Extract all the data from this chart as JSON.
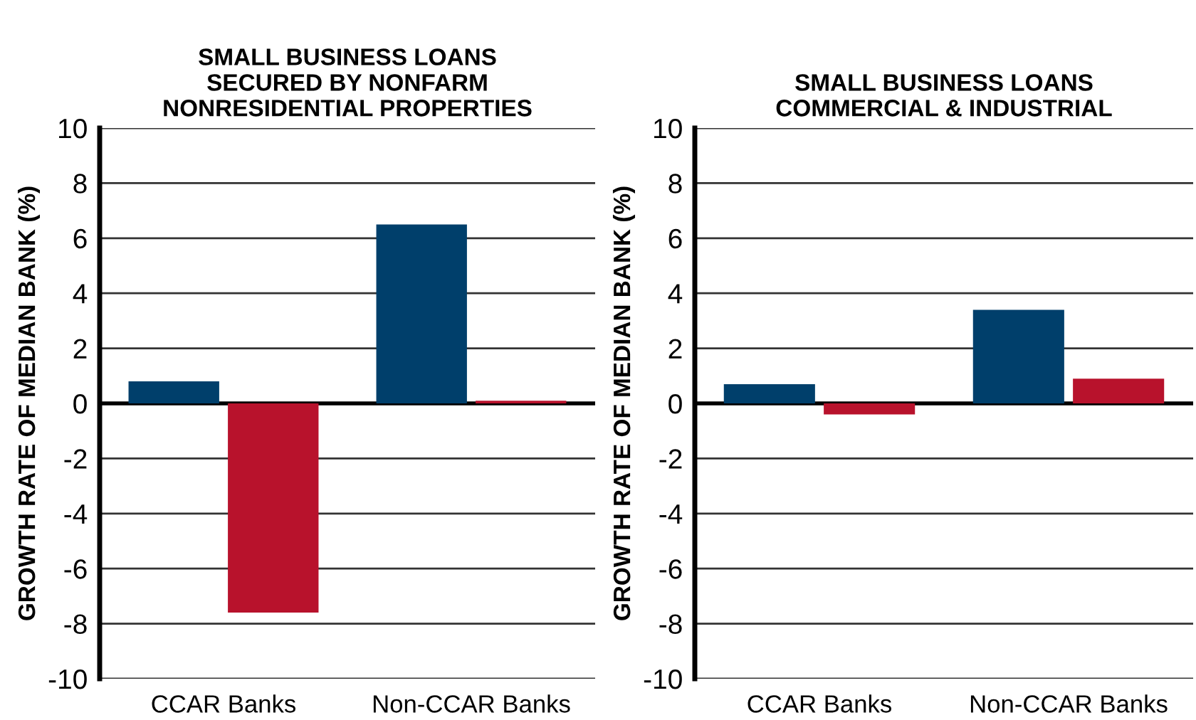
{
  "chart_data": [
    {
      "type": "bar",
      "title": "SMALL BUSINESS LOANS\nSECURED BY NONFARM\nNONRESIDENTIAL PROPERTIES",
      "ylabel": "GROWTH RATE OF MEDIAN BANK (%)",
      "categories": [
        "CCAR Banks",
        "Non-CCAR Banks"
      ],
      "series": [
        {
          "color": "#003f6b",
          "values": [
            0.8,
            6.5
          ]
        },
        {
          "color": "#b8122c",
          "values": [
            -7.6,
            0.1
          ]
        }
      ],
      "ylim": [
        -10,
        10
      ],
      "yticks": [
        -10,
        -8,
        -6,
        -4,
        -2,
        0,
        2,
        4,
        6,
        8,
        10
      ],
      "grid": "y",
      "ref_lines": [
        {
          "axis": "y",
          "value": 0,
          "color": "#000000"
        }
      ]
    },
    {
      "type": "bar",
      "title": "SMALL BUSINESS LOANS\nCOMMERCIAL & INDUSTRIAL",
      "ylabel": "GROWTH RATE OF MEDIAN BANK (%)",
      "categories": [
        "CCAR Banks",
        "Non-CCAR Banks"
      ],
      "series": [
        {
          "color": "#003f6b",
          "values": [
            0.7,
            3.4
          ]
        },
        {
          "color": "#b8122c",
          "values": [
            -0.4,
            0.9
          ]
        }
      ],
      "ylim": [
        -10,
        10
      ],
      "yticks": [
        -10,
        -8,
        -6,
        -4,
        -2,
        0,
        2,
        4,
        6,
        8,
        10
      ],
      "grid": "y",
      "ref_lines": [
        {
          "axis": "y",
          "value": 0,
          "color": "#000000"
        }
      ]
    }
  ]
}
